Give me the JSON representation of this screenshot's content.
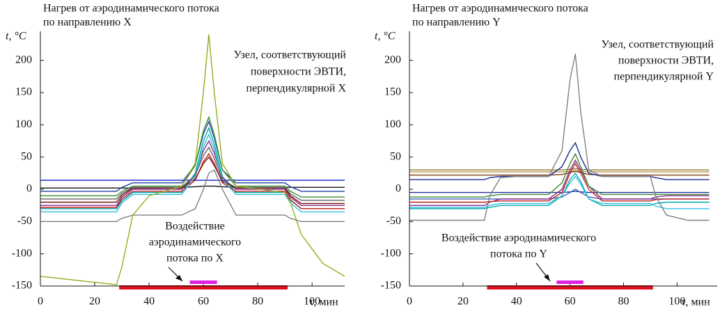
{
  "chart_data": [
    {
      "type": "line",
      "title": [
        "Нагрев от аэродинамического потока",
        "по направлению X"
      ],
      "ylabel": "t, °C",
      "xlabel": "τ, мин",
      "annotations": [
        [
          "Узел, соответствующий",
          "поверхности ЭВТИ,",
          "перпендикулярной X"
        ],
        [
          "Воздействие",
          "аэродинамического",
          "потока по X"
        ]
      ],
      "xlim": [
        0,
        112
      ],
      "ylim": [
        -150,
        245
      ],
      "xticks": [
        0,
        20,
        40,
        60,
        80,
        100
      ],
      "yticks": [
        -150,
        -100,
        -50,
        0,
        50,
        100,
        150,
        200
      ],
      "x": [
        0,
        28,
        30,
        34,
        40,
        52,
        57,
        60,
        62,
        64,
        67,
        72,
        90,
        92,
        96,
        104,
        112
      ],
      "bands": [
        {
          "color": "#e0101e",
          "x": [
            29,
            91
          ]
        },
        {
          "color": "#e020e0",
          "x": [
            55,
            65
          ]
        }
      ],
      "series": [
        {
          "color": "#2030d0",
          "values": [
            14,
            14,
            14,
            14,
            14,
            14,
            14,
            14,
            14,
            14,
            14,
            14,
            14,
            14,
            14,
            14,
            14
          ]
        },
        {
          "color": "#111111",
          "values": [
            2,
            2,
            2,
            2,
            2,
            3,
            4,
            5,
            5,
            5,
            4,
            3,
            3,
            3,
            3,
            3,
            3
          ]
        },
        {
          "color": "#808080",
          "values": [
            -50,
            -50,
            -45,
            -40,
            -40,
            -40,
            -30,
            0,
            25,
            30,
            0,
            -40,
            -40,
            -45,
            -50,
            -50,
            -50
          ]
        },
        {
          "color": "#1f3fa0",
          "values": [
            -3,
            -3,
            3,
            10,
            10,
            10,
            38,
            86,
            105,
            80,
            30,
            10,
            10,
            4,
            -3,
            -3,
            -3
          ]
        },
        {
          "color": "#3c8c30",
          "values": [
            -10,
            -10,
            -3,
            5,
            5,
            5,
            37,
            91,
            112,
            85,
            30,
            5,
            5,
            -3,
            -12,
            -12,
            -12
          ]
        },
        {
          "color": "#00a8a8",
          "values": [
            -30,
            -30,
            -18,
            -5,
            -5,
            -5,
            25,
            75,
            95,
            70,
            20,
            -5,
            -5,
            -17,
            -30,
            -30,
            -30
          ]
        },
        {
          "color": "#8a2a8a",
          "values": [
            -25,
            -25,
            -12,
            0,
            0,
            0,
            22,
            60,
            75,
            56,
            18,
            0,
            0,
            -12,
            -25,
            -25,
            -25
          ]
        },
        {
          "color": "#c02020",
          "values": [
            -28,
            -28,
            -15,
            -3,
            -3,
            -3,
            14,
            43,
            55,
            40,
            10,
            -3,
            -3,
            -16,
            -30,
            -30,
            -30
          ]
        },
        {
          "color": "#7a1010",
          "values": [
            -20,
            -20,
            -9,
            2,
            2,
            2,
            16,
            40,
            50,
            37,
            12,
            2,
            2,
            -10,
            -22,
            -22,
            -22
          ]
        },
        {
          "color": "#30c0e0",
          "values": [
            -35,
            -35,
            -21,
            -8,
            -8,
            -8,
            20,
            66,
            85,
            62,
            15,
            -8,
            -8,
            -21,
            -35,
            -35,
            -35
          ]
        },
        {
          "color": "#606060",
          "values": [
            -15,
            -15,
            -6,
            3,
            3,
            3,
            22,
            52,
            65,
            48,
            14,
            3,
            3,
            -7,
            -17,
            -17,
            -17
          ]
        },
        {
          "color": "#8fb020",
          "values": [
            -135,
            -148,
            -120,
            -40,
            -10,
            5,
            40,
            150,
            240,
            150,
            40,
            5,
            -5,
            -20,
            -70,
            -115,
            -135
          ]
        }
      ]
    },
    {
      "type": "line",
      "title": [
        "Нагрев от аэродинамического потока",
        "по направлению Y"
      ],
      "ylabel": "t, °C",
      "xlabel": "τ, мин",
      "annotations": [
        [
          "Узел, соответствующий",
          "поверхности ЭВТИ,",
          "перпендикулярной Y"
        ],
        [
          "Воздействие аэродинамического",
          "потока по Y"
        ]
      ],
      "xlim": [
        0,
        115
      ],
      "ylim": [
        -150,
        245
      ],
      "xticks": [
        0,
        20,
        40,
        60,
        80,
        100
      ],
      "yticks": [
        -150,
        -100,
        -50,
        0,
        50,
        100,
        150,
        200
      ],
      "x": [
        0,
        28,
        30,
        34,
        40,
        52,
        57,
        60,
        62,
        64,
        67,
        72,
        90,
        92,
        96,
        104,
        112
      ],
      "bands": [
        {
          "color": "#e0101e",
          "x": [
            29,
            91
          ]
        },
        {
          "color": "#e020e0",
          "x": [
            55,
            65
          ]
        }
      ],
      "series": [
        {
          "color": "#8a7a20",
          "values": [
            30,
            30,
            30,
            30,
            30,
            30,
            30,
            31,
            32,
            31,
            30,
            30,
            30,
            30,
            30,
            30,
            30
          ]
        },
        {
          "color": "#c0a060",
          "values": [
            27,
            27,
            27,
            27,
            27,
            27,
            27,
            28,
            29,
            28,
            27,
            27,
            27,
            27,
            27,
            27,
            27
          ]
        },
        {
          "color": "#7a3a10",
          "values": [
            22,
            22,
            22,
            22,
            22,
            22,
            23,
            26,
            28,
            26,
            23,
            22,
            22,
            22,
            22,
            22,
            22
          ]
        },
        {
          "color": "#1a2a90",
          "values": [
            15,
            15,
            18,
            20,
            20,
            20,
            35,
            60,
            72,
            50,
            25,
            20,
            20,
            18,
            15,
            15,
            15
          ]
        },
        {
          "color": "#2030a0",
          "values": [
            -5,
            -5,
            -5,
            -5,
            -5,
            -5,
            -5,
            -4,
            -3,
            -4,
            -5,
            -5,
            -5,
            -5,
            -5,
            -5,
            -5
          ]
        },
        {
          "color": "#4060c0",
          "values": [
            -15,
            -15,
            -15,
            -15,
            -15,
            -15,
            -12,
            -5,
            0,
            -5,
            -12,
            -15,
            -15,
            -15,
            -15,
            -15,
            -15
          ]
        },
        {
          "color": "#8a2a8a",
          "values": [
            -25,
            -25,
            -20,
            -15,
            -15,
            -15,
            0,
            30,
            45,
            30,
            5,
            -15,
            -15,
            -12,
            -10,
            -10,
            -10
          ]
        },
        {
          "color": "#c02020",
          "values": [
            -20,
            -20,
            -19,
            -18,
            -18,
            -18,
            -5,
            25,
            40,
            25,
            0,
            -18,
            -18,
            -16,
            -15,
            -15,
            -15
          ]
        },
        {
          "color": "#00a8a8",
          "values": [
            -30,
            -30,
            -28,
            -25,
            -25,
            -25,
            -10,
            15,
            25,
            12,
            -15,
            -25,
            -25,
            -22,
            -20,
            -20,
            -20
          ]
        },
        {
          "color": "#30c0e0",
          "values": [
            -28,
            -28,
            -25,
            -22,
            -22,
            -22,
            -10,
            10,
            20,
            8,
            -15,
            -22,
            -22,
            -26,
            -30,
            -30,
            -30
          ]
        },
        {
          "color": "#3c8c30",
          "values": [
            -12,
            -12,
            -10,
            -8,
            -8,
            -8,
            10,
            40,
            55,
            35,
            5,
            -8,
            -8,
            -8,
            -8,
            -8,
            -8
          ]
        },
        {
          "color": "#808080",
          "values": [
            -48,
            -48,
            -10,
            18,
            20,
            20,
            60,
            170,
            210,
            120,
            30,
            20,
            20,
            -10,
            -40,
            -48,
            -48
          ]
        }
      ]
    }
  ]
}
